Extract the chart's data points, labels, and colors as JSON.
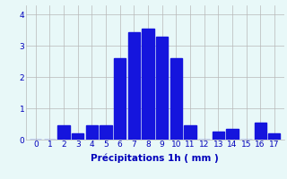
{
  "categories": [
    0,
    1,
    2,
    3,
    4,
    5,
    6,
    7,
    8,
    9,
    10,
    11,
    12,
    13,
    14,
    15,
    16,
    17
  ],
  "values": [
    0,
    0,
    0.45,
    0.2,
    0.45,
    0.45,
    2.6,
    3.45,
    3.55,
    3.3,
    2.6,
    0.45,
    0,
    0.25,
    0.35,
    0,
    0.55,
    0.2
  ],
  "bar_color": "#1515dd",
  "background_color": "#e8f8f8",
  "grid_color": "#b8b8b8",
  "xlabel": "Précipitations 1h ( mm )",
  "xlabel_color": "#0000bb",
  "tick_color": "#0000bb",
  "ylim": [
    0,
    4.3
  ],
  "yticks": [
    0,
    1,
    2,
    3,
    4
  ],
  "label_fontsize": 7.5,
  "tick_fontsize": 6.5,
  "bar_width": 0.85
}
